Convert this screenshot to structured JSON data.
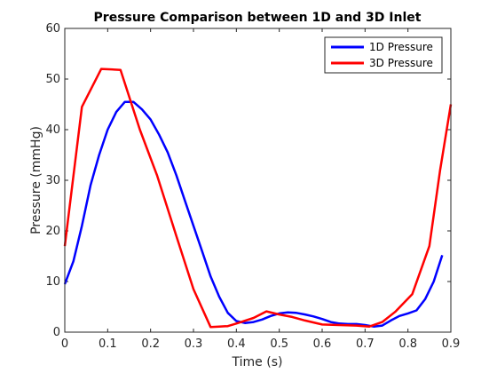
{
  "chart_data": {
    "type": "line",
    "title": "Pressure Comparison between 1D and 3D Inlet",
    "xlabel": "Time (s)",
    "ylabel": "Pressure (mmHg)",
    "xlim": [
      0,
      0.9
    ],
    "ylim": [
      0,
      60
    ],
    "xticks": [
      "0",
      "0.1",
      "0.2",
      "0.3",
      "0.4",
      "0.5",
      "0.6",
      "0.7",
      "0.8",
      "0.9"
    ],
    "yticks": [
      "0",
      "10",
      "20",
      "30",
      "40",
      "50",
      "60"
    ],
    "grid": false,
    "legend_position": "top-right",
    "series": [
      {
        "name": "1D Pressure",
        "color": "#0000ff",
        "x": [
          0,
          0.02,
          0.04,
          0.06,
          0.08,
          0.1,
          0.12,
          0.14,
          0.16,
          0.18,
          0.2,
          0.22,
          0.24,
          0.26,
          0.28,
          0.3,
          0.32,
          0.34,
          0.36,
          0.38,
          0.4,
          0.42,
          0.44,
          0.46,
          0.48,
          0.5,
          0.52,
          0.54,
          0.56,
          0.58,
          0.6,
          0.62,
          0.64,
          0.66,
          0.68,
          0.7,
          0.72,
          0.74,
          0.76,
          0.78,
          0.8,
          0.82,
          0.84,
          0.86,
          0.88
        ],
        "y": [
          9.5,
          14,
          21,
          29,
          35,
          40,
          43.5,
          45.5,
          45.5,
          44,
          42,
          39,
          35.5,
          31,
          26,
          21,
          16,
          11,
          7,
          3.8,
          2.2,
          1.8,
          2.0,
          2.5,
          3.2,
          3.7,
          3.9,
          3.8,
          3.5,
          3.1,
          2.6,
          2.0,
          1.7,
          1.6,
          1.6,
          1.4,
          1.1,
          1.3,
          2.3,
          3.2,
          3.7,
          4.3,
          6.5,
          10,
          15.2
        ]
      },
      {
        "name": "3D Pressure",
        "color": "#ff0000",
        "x": [
          0,
          0.04,
          0.085,
          0.13,
          0.175,
          0.215,
          0.26,
          0.3,
          0.34,
          0.36,
          0.38,
          0.4,
          0.44,
          0.47,
          0.5,
          0.53,
          0.56,
          0.6,
          0.64,
          0.68,
          0.71,
          0.74,
          0.77,
          0.81,
          0.85,
          0.875,
          0.9
        ],
        "y": [
          17,
          44.5,
          52,
          51.8,
          40,
          31,
          19,
          8.5,
          1.0,
          1.1,
          1.2,
          1.7,
          2.8,
          4.1,
          3.5,
          3.0,
          2.3,
          1.5,
          1.4,
          1.3,
          1.1,
          2.0,
          4.0,
          7.5,
          17,
          32,
          45
        ]
      }
    ]
  }
}
